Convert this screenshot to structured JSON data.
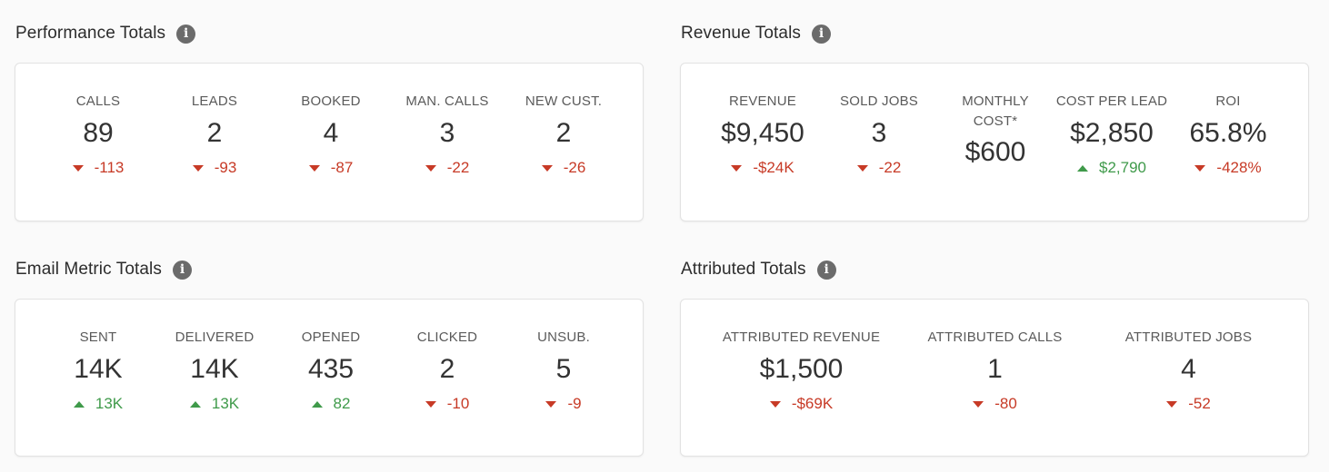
{
  "performance": {
    "title": "Performance Totals",
    "info_icon": "i",
    "metrics": [
      {
        "label": "CALLS",
        "value": "89",
        "delta": "-113",
        "direction": "down"
      },
      {
        "label": "LEADS",
        "value": "2",
        "delta": "-93",
        "direction": "down"
      },
      {
        "label": "BOOKED",
        "value": "4",
        "delta": "-87",
        "direction": "down"
      },
      {
        "label": "MAN. CALLS",
        "value": "3",
        "delta": "-22",
        "direction": "down"
      },
      {
        "label": "NEW CUST.",
        "value": "2",
        "delta": "-26",
        "direction": "down"
      }
    ]
  },
  "revenue": {
    "title": "Revenue Totals",
    "info_icon": "i",
    "metrics": [
      {
        "label": "REVENUE",
        "value": "$9,450",
        "delta": "-$24K",
        "direction": "down"
      },
      {
        "label": "SOLD JOBS",
        "value": "3",
        "delta": "-22",
        "direction": "down"
      },
      {
        "label": "MONTHLY COST*",
        "value": "$600",
        "delta": "",
        "direction": "none"
      },
      {
        "label": "COST PER LEAD",
        "value": "$2,850",
        "delta": "$2,790",
        "direction": "up"
      },
      {
        "label": "ROI",
        "value": "65.8%",
        "delta": "-428%",
        "direction": "down"
      }
    ]
  },
  "email": {
    "title": "Email Metric Totals",
    "info_icon": "i",
    "metrics": [
      {
        "label": "SENT",
        "value": "14K",
        "delta": "13K",
        "direction": "up"
      },
      {
        "label": "DELIVERED",
        "value": "14K",
        "delta": "13K",
        "direction": "up"
      },
      {
        "label": "OPENED",
        "value": "435",
        "delta": "82",
        "direction": "up"
      },
      {
        "label": "CLICKED",
        "value": "2",
        "delta": "-10",
        "direction": "down"
      },
      {
        "label": "UNSUB.",
        "value": "5",
        "delta": "-9",
        "direction": "down"
      }
    ]
  },
  "attributed": {
    "title": "Attributed Totals",
    "info_icon": "i",
    "metrics": [
      {
        "label": "ATTRIBUTED REVENUE",
        "value": "$1,500",
        "delta": "-$69K",
        "direction": "down"
      },
      {
        "label": "ATTRIBUTED CALLS",
        "value": "1",
        "delta": "-80",
        "direction": "down"
      },
      {
        "label": "ATTRIBUTED JOBS",
        "value": "4",
        "delta": "-52",
        "direction": "down"
      }
    ]
  },
  "colors": {
    "down": "#c73a26",
    "up": "#3f9a4a",
    "info_icon_bg": "#6b6b6b",
    "card_border": "#e2e2e2"
  }
}
